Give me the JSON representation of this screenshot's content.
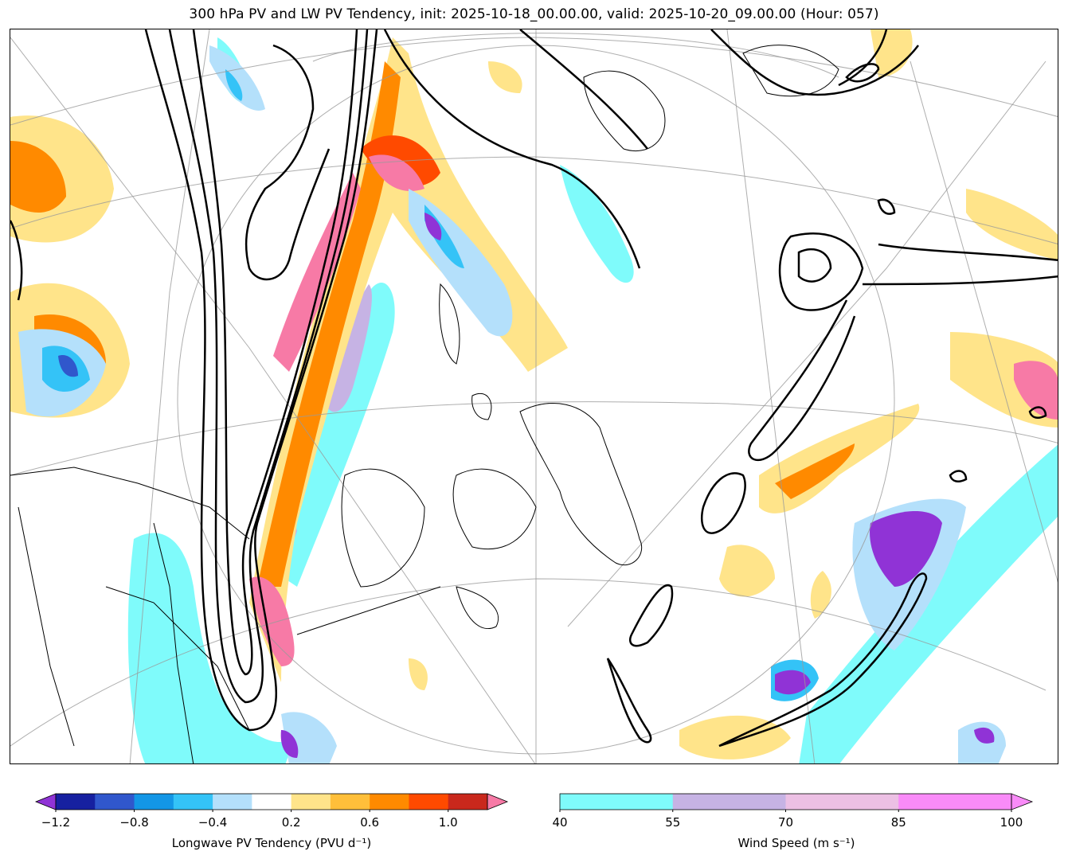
{
  "title": "300 hPa PV and LW PV Tendency, init: 2025-10-18_00.00.00, valid: 2025-10-20_09.00.00 (Hour: 057)",
  "colors": {
    "tend_neg": [
      "#9033d6",
      "#1620a0",
      "#3057cc",
      "#1396e6",
      "#34c3f7",
      "#b4e0fb"
    ],
    "tend_pos": [
      "#ffe48a",
      "#ffbf3a",
      "#ff8a00",
      "#ff4a00",
      "#c9281c",
      "#f77aa6"
    ],
    "wind": [
      "#7ffbfb",
      "#c6b3e4",
      "#ecc0e4",
      "#f98bf8"
    ],
    "contour": "#000000",
    "coast": "#000000",
    "grid": "#9a9a9a"
  },
  "colorbar_tendency": {
    "label": "Longwave PV Tendency (PVU d⁻¹)",
    "ticks": [
      "−1.2",
      "−0.8",
      "−0.4",
      "0.2",
      "0.6",
      "1.0"
    ],
    "levels": [
      -1.2,
      -1.0,
      -0.8,
      -0.6,
      -0.4,
      -0.2,
      0.2,
      0.4,
      0.6,
      0.8,
      1.0,
      1.2
    ]
  },
  "colorbar_wind": {
    "label": "Wind Speed (m s⁻¹)",
    "ticks": [
      "40",
      "55",
      "70",
      "85",
      "100"
    ],
    "levels": [
      40,
      55,
      70,
      85,
      100
    ]
  }
}
